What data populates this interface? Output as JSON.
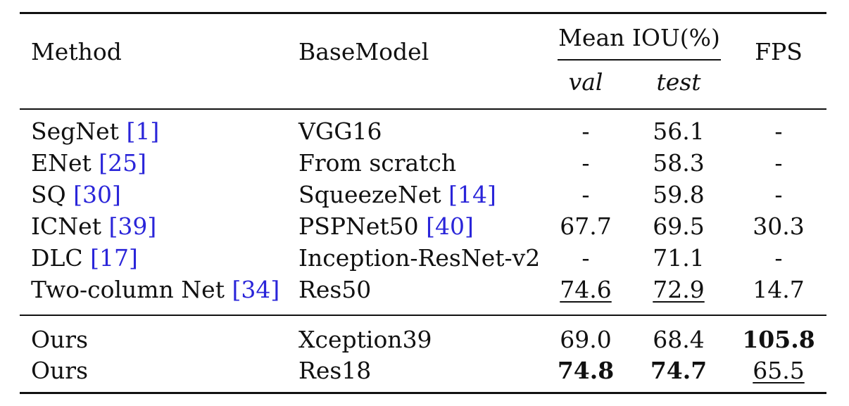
{
  "header": {
    "method": "Method",
    "basemodel": "BaseModel",
    "mean_iou": "Mean IOU(%)",
    "fps": "FPS",
    "val": "val",
    "test": "test"
  },
  "rows_group1": [
    {
      "method": "SegNet",
      "ref": "1",
      "base": "VGG16",
      "base_ref": "",
      "val": "-",
      "test": "56.1",
      "fps": "-"
    },
    {
      "method": "ENet",
      "ref": "25",
      "base": "From scratch",
      "base_ref": "",
      "val": "-",
      "test": "58.3",
      "fps": "-"
    },
    {
      "method": "SQ",
      "ref": "30",
      "base": "SqueezeNet",
      "base_ref": "14",
      "val": "-",
      "test": "59.8",
      "fps": "-"
    },
    {
      "method": "ICNet",
      "ref": "39",
      "base": "PSPNet50",
      "base_ref": "40",
      "val": "67.7",
      "test": "69.5",
      "fps": "30.3"
    },
    {
      "method": "DLC",
      "ref": "17",
      "base": "Inception-ResNet-v2",
      "base_ref": "",
      "val": "-",
      "test": "71.1",
      "fps": "-"
    },
    {
      "method": "Two-column Net",
      "ref": "34",
      "base": "Res50",
      "base_ref": "",
      "val": "74.6",
      "test": "72.9",
      "fps": "14.7"
    }
  ],
  "rows_group2": [
    {
      "method": "Ours",
      "base": "Xception39",
      "val": "69.0",
      "test": "68.4",
      "fps": "105.8"
    },
    {
      "method": "Ours",
      "base": "Res18",
      "val": "74.8",
      "test": "74.7",
      "fps": "65.5"
    }
  ]
}
